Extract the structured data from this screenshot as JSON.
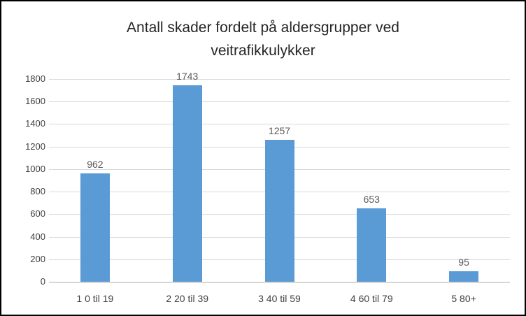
{
  "chart_data": {
    "type": "bar",
    "title": "Antall skader fordelt på aldersgrupper ved veitrafikkulykker",
    "title_lines": [
      "Antall skader fordelt på aldersgrupper ved",
      "veitrafikkulykker"
    ],
    "categories": [
      "1 0 til 19",
      "2 20 til 39",
      "3 40 til 59",
      "4 60 til 79",
      "5 80+"
    ],
    "values": [
      962,
      1743,
      1257,
      653,
      95
    ],
    "data_labels": [
      "962",
      "1743",
      "1257",
      "653",
      "95"
    ],
    "xlabel": "",
    "ylabel": "",
    "ylim": [
      0,
      1800
    ],
    "yticks": [
      0,
      200,
      400,
      600,
      800,
      1000,
      1200,
      1400,
      1600,
      1800
    ],
    "grid": true,
    "legend": "none",
    "colors": {
      "bar": "#5b9bd5",
      "gridline": "#d9d9d9",
      "axis_line": "#d6d6d6",
      "title_text": "#262626",
      "tick_label_text": "#404040",
      "data_label_text": "#595959",
      "frame_border": "#000000",
      "background": "#ffffff"
    }
  }
}
